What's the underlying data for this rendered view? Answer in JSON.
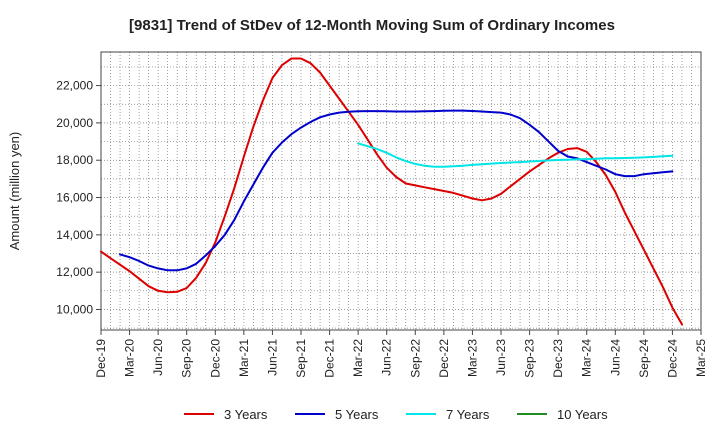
{
  "chart_data": {
    "type": "line",
    "title": "[9831]  Trend of StDev of 12-Month Moving Sum of Ordinary Incomes",
    "xlabel": "",
    "ylabel": "Amount (million yen)",
    "x_ticks": [
      "Dec-19",
      "Mar-20",
      "Jun-20",
      "Sep-20",
      "Dec-20",
      "Mar-21",
      "Jun-21",
      "Sep-21",
      "Dec-21",
      "Mar-22",
      "Jun-22",
      "Sep-22",
      "Dec-22",
      "Mar-23",
      "Jun-23",
      "Sep-23",
      "Dec-23",
      "Mar-24",
      "Jun-24",
      "Sep-24",
      "Dec-24",
      "Mar-25"
    ],
    "y_ticks": [
      10000,
      12000,
      14000,
      16000,
      18000,
      20000,
      22000
    ],
    "y_tick_labels": [
      "10,000",
      "12,000",
      "14,000",
      "16,000",
      "18,000",
      "20,000",
      "22,000"
    ],
    "xlim": [
      0,
      63
    ],
    "ylim": [
      8900,
      23800
    ],
    "grid": true,
    "legend_position": "bottom",
    "series": [
      {
        "name": "3 Years",
        "color": "#dd0000",
        "points": [
          [
            0,
            13100
          ],
          [
            1,
            12750
          ],
          [
            2,
            12400
          ],
          [
            3,
            12050
          ],
          [
            4,
            11650
          ],
          [
            5,
            11250
          ],
          [
            6,
            11000
          ],
          [
            7,
            10920
          ],
          [
            8,
            10950
          ],
          [
            9,
            11150
          ],
          [
            10,
            11700
          ],
          [
            11,
            12500
          ],
          [
            12,
            13600
          ],
          [
            13,
            15000
          ],
          [
            14,
            16500
          ],
          [
            15,
            18200
          ],
          [
            16,
            19800
          ],
          [
            17,
            21200
          ],
          [
            18,
            22400
          ],
          [
            19,
            23100
          ],
          [
            20,
            23450
          ],
          [
            21,
            23450
          ],
          [
            22,
            23200
          ],
          [
            23,
            22700
          ],
          [
            24,
            22000
          ],
          [
            25,
            21300
          ],
          [
            26,
            20600
          ],
          [
            27,
            19900
          ],
          [
            28,
            19100
          ],
          [
            29,
            18300
          ],
          [
            30,
            17600
          ],
          [
            31,
            17100
          ],
          [
            32,
            16750
          ],
          [
            33,
            16650
          ],
          [
            34,
            16550
          ],
          [
            35,
            16450
          ],
          [
            36,
            16350
          ],
          [
            37,
            16250
          ],
          [
            38,
            16100
          ],
          [
            39,
            15950
          ],
          [
            40,
            15850
          ],
          [
            41,
            15950
          ],
          [
            42,
            16200
          ],
          [
            43,
            16600
          ],
          [
            44,
            17000
          ],
          [
            45,
            17400
          ],
          [
            46,
            17750
          ],
          [
            47,
            18100
          ],
          [
            48,
            18400
          ],
          [
            49,
            18600
          ],
          [
            50,
            18650
          ],
          [
            51,
            18450
          ],
          [
            52,
            17900
          ],
          [
            53,
            17200
          ],
          [
            54,
            16300
          ],
          [
            55,
            15200
          ],
          [
            56,
            14200
          ],
          [
            57,
            13200
          ],
          [
            58,
            12200
          ],
          [
            59,
            11200
          ],
          [
            60,
            10100
          ],
          [
            61,
            9200
          ]
        ]
      },
      {
        "name": "5 Years",
        "color": "#0000cc",
        "points": [
          [
            2,
            12950
          ],
          [
            3,
            12800
          ],
          [
            4,
            12600
          ],
          [
            5,
            12350
          ],
          [
            6,
            12200
          ],
          [
            7,
            12100
          ],
          [
            8,
            12100
          ],
          [
            9,
            12200
          ],
          [
            10,
            12450
          ],
          [
            11,
            12900
          ],
          [
            12,
            13400
          ],
          [
            13,
            14000
          ],
          [
            14,
            14800
          ],
          [
            15,
            15800
          ],
          [
            16,
            16700
          ],
          [
            17,
            17600
          ],
          [
            18,
            18400
          ],
          [
            19,
            18950
          ],
          [
            20,
            19400
          ],
          [
            21,
            19750
          ],
          [
            22,
            20050
          ],
          [
            23,
            20300
          ],
          [
            24,
            20450
          ],
          [
            25,
            20550
          ],
          [
            26,
            20600
          ],
          [
            27,
            20620
          ],
          [
            28,
            20630
          ],
          [
            29,
            20630
          ],
          [
            30,
            20620
          ],
          [
            31,
            20610
          ],
          [
            32,
            20610
          ],
          [
            33,
            20610
          ],
          [
            34,
            20620
          ],
          [
            35,
            20630
          ],
          [
            36,
            20650
          ],
          [
            37,
            20660
          ],
          [
            38,
            20660
          ],
          [
            39,
            20640
          ],
          [
            40,
            20610
          ],
          [
            41,
            20580
          ],
          [
            42,
            20550
          ],
          [
            43,
            20450
          ],
          [
            44,
            20250
          ],
          [
            45,
            19900
          ],
          [
            46,
            19500
          ],
          [
            47,
            19000
          ],
          [
            48,
            18500
          ],
          [
            49,
            18200
          ],
          [
            50,
            18100
          ],
          [
            51,
            17900
          ],
          [
            52,
            17700
          ],
          [
            53,
            17500
          ],
          [
            54,
            17250
          ],
          [
            55,
            17150
          ],
          [
            56,
            17150
          ],
          [
            57,
            17250
          ],
          [
            58,
            17300
          ],
          [
            59,
            17350
          ],
          [
            60,
            17400
          ]
        ]
      },
      {
        "name": "7 Years",
        "color": "#00e5e5",
        "points": [
          [
            27,
            18900
          ],
          [
            28,
            18750
          ],
          [
            29,
            18600
          ],
          [
            30,
            18400
          ],
          [
            31,
            18150
          ],
          [
            32,
            17950
          ],
          [
            33,
            17800
          ],
          [
            34,
            17700
          ],
          [
            35,
            17650
          ],
          [
            36,
            17650
          ],
          [
            37,
            17680
          ],
          [
            38,
            17700
          ],
          [
            39,
            17750
          ],
          [
            40,
            17780
          ],
          [
            41,
            17820
          ],
          [
            42,
            17850
          ],
          [
            43,
            17880
          ],
          [
            44,
            17900
          ],
          [
            45,
            17930
          ],
          [
            46,
            17960
          ],
          [
            47,
            17990
          ],
          [
            48,
            18010
          ],
          [
            49,
            18030
          ],
          [
            50,
            18050
          ],
          [
            51,
            18060
          ],
          [
            52,
            18080
          ],
          [
            53,
            18100
          ],
          [
            54,
            18110
          ],
          [
            55,
            18120
          ],
          [
            56,
            18130
          ],
          [
            57,
            18150
          ],
          [
            58,
            18180
          ],
          [
            59,
            18210
          ],
          [
            60,
            18240
          ]
        ]
      },
      {
        "name": "10 Years",
        "color": "#228b22",
        "points": []
      }
    ]
  }
}
